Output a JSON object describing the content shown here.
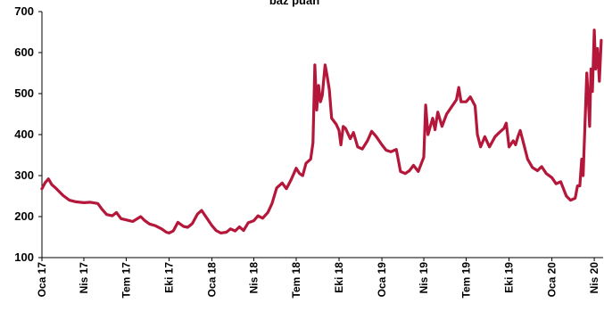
{
  "chart_data": {
    "type": "line",
    "title": "baz puan",
    "xlabel": "",
    "ylabel": "",
    "ylim": [
      100,
      700
    ],
    "yticks": [
      100,
      200,
      300,
      400,
      500,
      600,
      700
    ],
    "xticks": [
      {
        "label": "Oca 17",
        "x": "2017-01"
      },
      {
        "label": "Nis 17",
        "x": "2017-04"
      },
      {
        "label": "Tem 17",
        "x": "2017-07"
      },
      {
        "label": "Eki 17",
        "x": "2017-10"
      },
      {
        "label": "Oca 18",
        "x": "2018-01"
      },
      {
        "label": "Nis 18",
        "x": "2018-04"
      },
      {
        "label": "Tem 18",
        "x": "2018-07"
      },
      {
        "label": "Eki 18",
        "x": "2018-10"
      },
      {
        "label": "Oca 19",
        "x": "2019-01"
      },
      {
        "label": "Nis 19",
        "x": "2019-04"
      },
      {
        "label": "Tem 19",
        "x": "2019-07"
      },
      {
        "label": "Eki 19",
        "x": "2019-10"
      },
      {
        "label": "Oca 20",
        "x": "2020-01"
      },
      {
        "label": "Nis 20",
        "x": "2020-04"
      }
    ],
    "grid": false,
    "line_color": "#b5173a",
    "series": [
      {
        "points": [
          [
            "2017-01-01",
            268
          ],
          [
            "2017-01-08",
            283
          ],
          [
            "2017-01-15",
            292
          ],
          [
            "2017-01-22",
            278
          ],
          [
            "2017-02-01",
            268
          ],
          [
            "2017-02-15",
            252
          ],
          [
            "2017-03-01",
            240
          ],
          [
            "2017-03-15",
            236
          ],
          [
            "2017-04-01",
            234
          ],
          [
            "2017-04-15",
            235
          ],
          [
            "2017-05-01",
            232
          ],
          [
            "2017-05-10",
            218
          ],
          [
            "2017-05-20",
            205
          ],
          [
            "2017-06-01",
            202
          ],
          [
            "2017-06-10",
            210
          ],
          [
            "2017-06-20",
            195
          ],
          [
            "2017-07-01",
            192
          ],
          [
            "2017-07-15",
            188
          ],
          [
            "2017-08-01",
            200
          ],
          [
            "2017-08-10",
            190
          ],
          [
            "2017-08-20",
            182
          ],
          [
            "2017-09-01",
            178
          ],
          [
            "2017-09-15",
            170
          ],
          [
            "2017-09-25",
            162
          ],
          [
            "2017-10-01",
            160
          ],
          [
            "2017-10-10",
            165
          ],
          [
            "2017-10-20",
            186
          ],
          [
            "2017-11-01",
            176
          ],
          [
            "2017-11-10",
            174
          ],
          [
            "2017-11-20",
            183
          ],
          [
            "2017-12-01",
            206
          ],
          [
            "2017-12-10",
            215
          ],
          [
            "2017-12-20",
            198
          ],
          [
            "2018-01-01",
            178
          ],
          [
            "2018-01-10",
            166
          ],
          [
            "2018-01-20",
            160
          ],
          [
            "2018-02-01",
            162
          ],
          [
            "2018-02-10",
            170
          ],
          [
            "2018-02-20",
            165
          ],
          [
            "2018-03-01",
            175
          ],
          [
            "2018-03-10",
            166
          ],
          [
            "2018-03-20",
            185
          ],
          [
            "2018-04-01",
            190
          ],
          [
            "2018-04-10",
            202
          ],
          [
            "2018-04-20",
            196
          ],
          [
            "2018-05-01",
            210
          ],
          [
            "2018-05-10",
            232
          ],
          [
            "2018-05-20",
            270
          ],
          [
            "2018-06-01",
            282
          ],
          [
            "2018-06-10",
            268
          ],
          [
            "2018-06-20",
            290
          ],
          [
            "2018-07-01",
            318
          ],
          [
            "2018-07-08",
            305
          ],
          [
            "2018-07-15",
            300
          ],
          [
            "2018-07-22",
            330
          ],
          [
            "2018-08-01",
            340
          ],
          [
            "2018-08-06",
            380
          ],
          [
            "2018-08-10",
            570
          ],
          [
            "2018-08-14",
            460
          ],
          [
            "2018-08-18",
            520
          ],
          [
            "2018-08-22",
            480
          ],
          [
            "2018-08-26",
            495
          ],
          [
            "2018-09-01",
            570
          ],
          [
            "2018-09-05",
            545
          ],
          [
            "2018-09-10",
            510
          ],
          [
            "2018-09-15",
            440
          ],
          [
            "2018-09-25",
            425
          ],
          [
            "2018-10-01",
            410
          ],
          [
            "2018-10-05",
            375
          ],
          [
            "2018-10-10",
            420
          ],
          [
            "2018-10-15",
            415
          ],
          [
            "2018-10-25",
            390
          ],
          [
            "2018-11-01",
            405
          ],
          [
            "2018-11-10",
            370
          ],
          [
            "2018-11-20",
            365
          ],
          [
            "2018-12-01",
            385
          ],
          [
            "2018-12-10",
            408
          ],
          [
            "2018-12-20",
            395
          ],
          [
            "2019-01-01",
            375
          ],
          [
            "2019-01-10",
            362
          ],
          [
            "2019-01-20",
            358
          ],
          [
            "2019-02-01",
            364
          ],
          [
            "2019-02-05",
            340
          ],
          [
            "2019-02-10",
            310
          ],
          [
            "2019-02-20",
            305
          ],
          [
            "2019-03-01",
            312
          ],
          [
            "2019-03-10",
            325
          ],
          [
            "2019-03-20",
            310
          ],
          [
            "2019-04-01",
            345
          ],
          [
            "2019-04-05",
            472
          ],
          [
            "2019-04-10",
            400
          ],
          [
            "2019-04-20",
            440
          ],
          [
            "2019-04-25",
            412
          ],
          [
            "2019-05-01",
            455
          ],
          [
            "2019-05-10",
            420
          ],
          [
            "2019-05-20",
            450
          ],
          [
            "2019-06-01",
            470
          ],
          [
            "2019-06-10",
            485
          ],
          [
            "2019-06-15",
            515
          ],
          [
            "2019-06-20",
            480
          ],
          [
            "2019-07-01",
            480
          ],
          [
            "2019-07-10",
            492
          ],
          [
            "2019-07-20",
            470
          ],
          [
            "2019-07-25",
            400
          ],
          [
            "2019-08-01",
            370
          ],
          [
            "2019-08-10",
            395
          ],
          [
            "2019-08-20",
            370
          ],
          [
            "2019-09-01",
            395
          ],
          [
            "2019-09-10",
            405
          ],
          [
            "2019-09-20",
            415
          ],
          [
            "2019-09-25",
            428
          ],
          [
            "2019-10-01",
            370
          ],
          [
            "2019-10-10",
            385
          ],
          [
            "2019-10-15",
            375
          ],
          [
            "2019-10-20",
            395
          ],
          [
            "2019-10-25",
            410
          ],
          [
            "2019-11-01",
            380
          ],
          [
            "2019-11-10",
            340
          ],
          [
            "2019-11-20",
            320
          ],
          [
            "2019-12-01",
            312
          ],
          [
            "2019-12-10",
            322
          ],
          [
            "2019-12-20",
            305
          ],
          [
            "2020-01-01",
            295
          ],
          [
            "2020-01-10",
            280
          ],
          [
            "2020-01-20",
            285
          ],
          [
            "2020-02-01",
            250
          ],
          [
            "2020-02-10",
            240
          ],
          [
            "2020-02-20",
            245
          ],
          [
            "2020-02-25",
            275
          ],
          [
            "2020-03-01",
            275
          ],
          [
            "2020-03-05",
            340
          ],
          [
            "2020-03-08",
            300
          ],
          [
            "2020-03-12",
            420
          ],
          [
            "2020-03-16",
            550
          ],
          [
            "2020-03-19",
            490
          ],
          [
            "2020-03-22",
            420
          ],
          [
            "2020-03-25",
            560
          ],
          [
            "2020-03-28",
            505
          ],
          [
            "2020-04-01",
            655
          ],
          [
            "2020-04-04",
            560
          ],
          [
            "2020-04-08",
            610
          ],
          [
            "2020-04-12",
            530
          ],
          [
            "2020-04-16",
            630
          ]
        ]
      }
    ]
  }
}
